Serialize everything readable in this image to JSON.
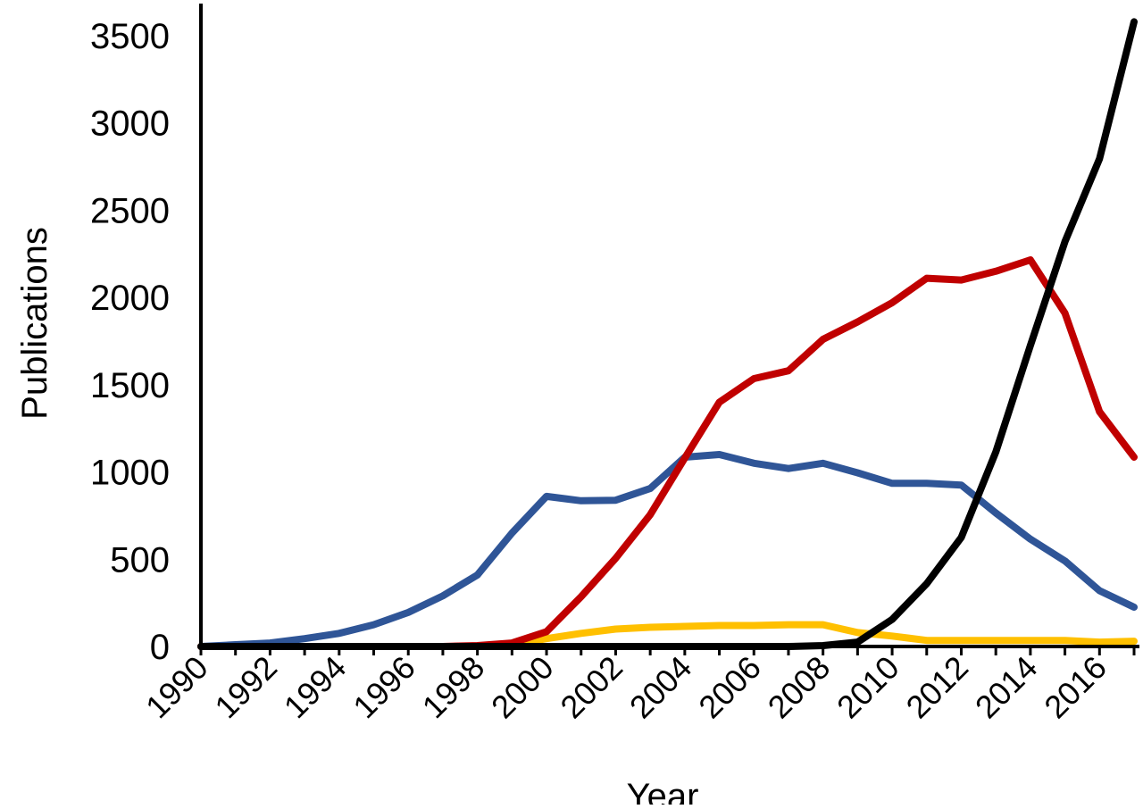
{
  "chart_data": {
    "type": "line",
    "title": "",
    "xlabel": "Year",
    "ylabel": "Publications",
    "x": [
      1990,
      1991,
      1992,
      1993,
      1994,
      1995,
      1996,
      1997,
      1998,
      1999,
      2000,
      2001,
      2002,
      2003,
      2004,
      2005,
      2006,
      2007,
      2008,
      2009,
      2010,
      2011,
      2012,
      2013,
      2014,
      2015,
      2016,
      2017
    ],
    "x_tick_labels": [
      "1990",
      "1992",
      "1994",
      "1996",
      "1998",
      "2000",
      "2002",
      "2004",
      "2006",
      "2008",
      "2010",
      "2012",
      "2014",
      "2016"
    ],
    "y_tick_labels": [
      "0",
      "500",
      "1000",
      "1500",
      "2000",
      "2500",
      "3000",
      "3500"
    ],
    "xlim": [
      1990,
      2017
    ],
    "ylim": [
      0,
      3500
    ],
    "grid": false,
    "legend": "none",
    "series": [
      {
        "color": "#2f5597",
        "values": [
          0,
          10,
          20,
          45,
          75,
          125,
          195,
          290,
          410,
          650,
          860,
          835,
          838,
          905,
          1085,
          1100,
          1050,
          1020,
          1050,
          995,
          935,
          935,
          925,
          765,
          615,
          490,
          320,
          225
        ]
      },
      {
        "color": "#c00000",
        "values": [
          0,
          0,
          0,
          0,
          0,
          0,
          0,
          0,
          5,
          20,
          85,
          285,
          505,
          755,
          1080,
          1400,
          1535,
          1580,
          1760,
          1860,
          1970,
          2110,
          2100,
          2150,
          2215,
          1910,
          1345,
          1085
        ]
      },
      {
        "color": "#ffc000",
        "values": [
          0,
          0,
          0,
          0,
          0,
          0,
          0,
          0,
          0,
          10,
          45,
          75,
          100,
          110,
          115,
          120,
          120,
          125,
          125,
          80,
          60,
          35,
          35,
          35,
          35,
          35,
          25,
          30
        ]
      },
      {
        "color": "#000000",
        "values": [
          0,
          0,
          0,
          0,
          0,
          0,
          0,
          0,
          0,
          0,
          0,
          0,
          0,
          0,
          0,
          0,
          0,
          0,
          5,
          25,
          155,
          360,
          625,
          1115,
          1725,
          2320,
          2795,
          3580
        ]
      }
    ]
  }
}
